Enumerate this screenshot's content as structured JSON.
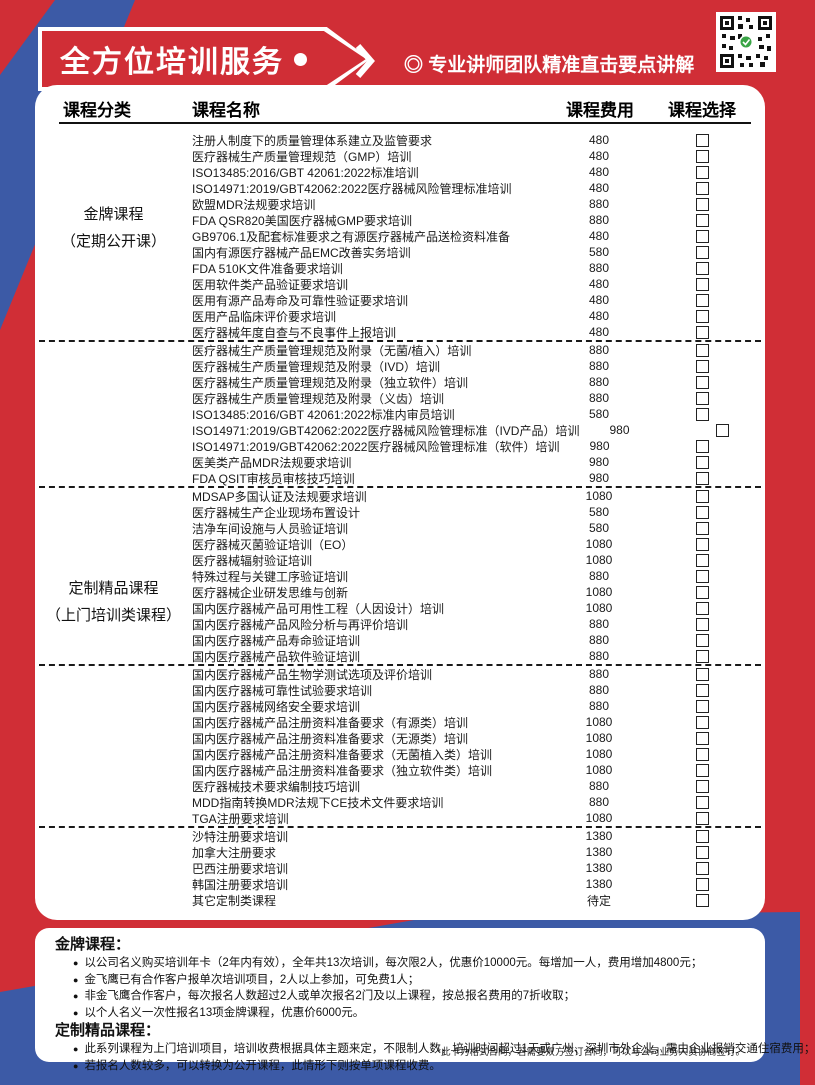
{
  "colors": {
    "red": "#d02e36",
    "blue": "#3c5aa6",
    "text": "#1a1a1a"
  },
  "header": {
    "title": "全方位培训服务",
    "subtitle": "◎ 专业讲师团队精准直击要点讲解"
  },
  "table": {
    "columns": [
      "课程分类",
      "课程名称",
      "课程费用",
      "课程选择"
    ],
    "groups": [
      {
        "category_lines": [
          "金牌课程",
          "（定期公开课）"
        ],
        "rows": [
          {
            "name": "注册人制度下的质量管理体系建立及监管要求",
            "fee": "480"
          },
          {
            "name": "医疗器械生产质量管理规范（GMP）培训",
            "fee": "480"
          },
          {
            "name": "ISO13485:2016/GBT 42061:2022标准培训",
            "fee": "480"
          },
          {
            "name": "ISO14971:2019/GBT42062:2022医疗器械风险管理标准培训",
            "fee": "480"
          },
          {
            "name": "欧盟MDR法规要求培训",
            "fee": "880"
          },
          {
            "name": "FDA QSR820美国医疗器械GMP要求培训",
            "fee": "880"
          },
          {
            "name": "GB9706.1及配套标准要求之有源医疗器械产品送检资料准备",
            "fee": "480"
          },
          {
            "name": "国内有源医疗器械产品EMC改善实务培训",
            "fee": "580"
          },
          {
            "name": "FDA 510K文件准备要求培训",
            "fee": "880"
          },
          {
            "name": "医用软件类产品验证要求培训",
            "fee": "480"
          },
          {
            "name": "医用有源产品寿命及可靠性验证要求培训",
            "fee": "480"
          },
          {
            "name": "医用产品临床评价要求培训",
            "fee": "480"
          },
          {
            "name": "医疗器械年度自查与不良事件上报培训",
            "fee": "480",
            "dash_after": true
          }
        ]
      },
      {
        "category_lines": [
          "定制精品课程",
          "（上门培训类课程）"
        ],
        "rows": [
          {
            "name": "医疗器械生产质量管理规范及附录（无菌/植入）培训",
            "fee": "880"
          },
          {
            "name": "医疗器械生产质量管理规范及附录（IVD）培训",
            "fee": "880"
          },
          {
            "name": "医疗器械生产质量管理规范及附录（独立软件）培训",
            "fee": "880"
          },
          {
            "name": "医疗器械生产质量管理规范及附录（义齿）培训",
            "fee": "880"
          },
          {
            "name": "ISO13485:2016/GBT 42061:2022标准内审员培训",
            "fee": "580"
          },
          {
            "name": "ISO14971:2019/GBT42062:2022医疗器械风险管理标准（IVD产品）培训",
            "fee": "980"
          },
          {
            "name": "ISO14971:2019/GBT42062:2022医疗器械风险管理标准（软件）培训",
            "fee": "980"
          },
          {
            "name": "医美类产品MDR法规要求培训",
            "fee": "980"
          },
          {
            "name": "FDA QSIT审核员审核技巧培训",
            "fee": "980",
            "dash_after": true
          },
          {
            "name": "MDSAP多国认证及法规要求培训",
            "fee": "1080"
          },
          {
            "name": "医疗器械生产企业现场布置设计",
            "fee": "580"
          },
          {
            "name": "洁净车间设施与人员验证培训",
            "fee": "580"
          },
          {
            "name": "医疗器械灭菌验证培训（EO）",
            "fee": "1080"
          },
          {
            "name": "医疗器械辐射验证培训",
            "fee": "1080"
          },
          {
            "name": "特殊过程与关键工序验证培训",
            "fee": "880"
          },
          {
            "name": "医疗器械企业研发思维与创新",
            "fee": "1080"
          },
          {
            "name": "国内医疗器械产品可用性工程（人因设计）培训",
            "fee": "1080"
          },
          {
            "name": "国内医疗器械产品风险分析与再评价培训",
            "fee": "880"
          },
          {
            "name": "国内医疗器械产品寿命验证培训",
            "fee": "880"
          },
          {
            "name": "国内医疗器械产品软件验证培训",
            "fee": "880",
            "dash_after": true
          },
          {
            "name": "国内医疗器械产品生物学测试选项及评价培训",
            "fee": "880"
          },
          {
            "name": "国内医疗器械可靠性试验要求培训",
            "fee": "880"
          },
          {
            "name": "国内医疗器械网络安全要求培训",
            "fee": "880"
          },
          {
            "name": "国内医疗器械产品注册资料准备要求（有源类）培训",
            "fee": "1080"
          },
          {
            "name": "国内医疗器械产品注册资料准备要求（无源类）培训",
            "fee": "1080"
          },
          {
            "name": "国内医疗器械产品注册资料准备要求（无菌植入类）培训",
            "fee": "1080"
          },
          {
            "name": "国内医疗器械产品注册资料准备要求（独立软件类）培训",
            "fee": "1080"
          },
          {
            "name": "医疗器械技术要求编制技巧培训",
            "fee": "880"
          },
          {
            "name": "MDD指南转换MDR法规下CE技术文件要求培训",
            "fee": "880"
          },
          {
            "name": "TGA注册要求培训",
            "fee": "1080",
            "dash_after": true
          },
          {
            "name": "沙特注册要求培训",
            "fee": "1380"
          },
          {
            "name": "加拿大注册要求",
            "fee": "1380"
          },
          {
            "name": "巴西注册要求培训",
            "fee": "1380"
          },
          {
            "name": "韩国注册要求培训",
            "fee": "1380"
          },
          {
            "name": "其它定制类课程",
            "fee": "待定"
          }
        ]
      }
    ]
  },
  "notes": [
    {
      "heading": "金牌课程：",
      "bullets": [
        "以公司名义购买培训年卡（2年内有效），全年共13次培训，每次限2人，优惠价10000元。每增加一人，费用增加4800元；",
        "金飞鹰已有合作客户报单次培训项目，2人以上参加，可免费1人；",
        "非金飞鹰合作客户，每次报名人数超过2人或单次报名2门及以上课程，按总报名费用的7折收取；",
        "以个人名义一次性报名13项金牌课程，优惠价6000元。"
      ]
    },
    {
      "heading": "定制精品课程：",
      "bullets": [
        "此系列课程为上门培训项目，培训收费根据具体主题来定，不限制人数，培训时间超过1天或广州、深圳市外企业，需由企业报销交通住宿费用；",
        "若报名人数较多，可以转换为公开课程，此情形下则按单项课程收费。"
      ]
    }
  ],
  "fine_print": "*此卡为格式合同，若需要双方签订合同，可以与公司业务人员协商签订。",
  "icons": {
    "bullet": "●",
    "dot": "●"
  }
}
